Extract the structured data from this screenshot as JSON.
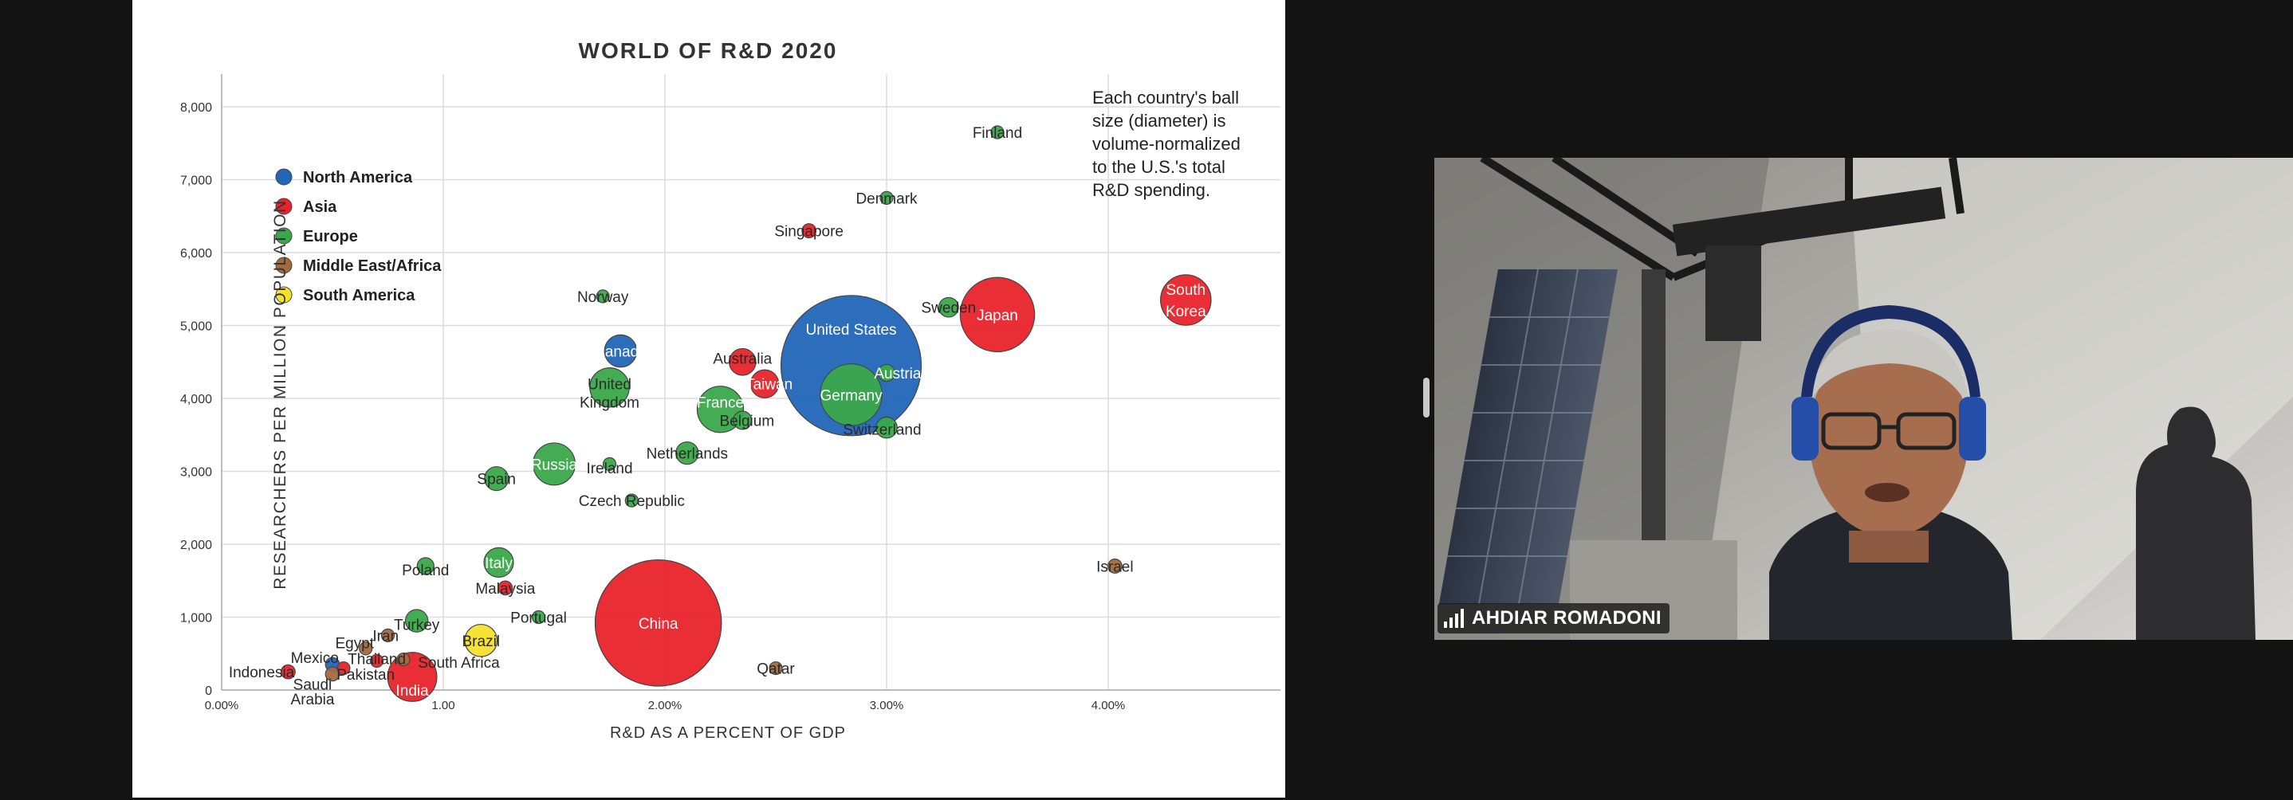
{
  "speaker_name": "AHDIAR ROMADONI",
  "chart_data": {
    "type": "scatter",
    "title": "WORLD OF R&D 2020",
    "xlabel": "R&D AS A PERCENT OF GDP",
    "ylabel": "RESEARCHERS PER MILLION POPULATION",
    "xlim": [
      0,
      4.8
    ],
    "ylim": [
      0,
      8400
    ],
    "x_ticks": [
      {
        "value": 0,
        "label": "0.00%"
      },
      {
        "value": 1,
        "label": "1.00"
      },
      {
        "value": 2,
        "label": "2.00%"
      },
      {
        "value": 3,
        "label": "3.00%"
      },
      {
        "value": 4,
        "label": "4.00%"
      }
    ],
    "y_ticks": [
      {
        "value": 0,
        "label": "0"
      },
      {
        "value": 1000,
        "label": "1,000"
      },
      {
        "value": 2000,
        "label": "2,000"
      },
      {
        "value": 3000,
        "label": "3,000"
      },
      {
        "value": 4000,
        "label": "4,000"
      },
      {
        "value": 5000,
        "label": "5,000"
      },
      {
        "value": 6000,
        "label": "6,000"
      },
      {
        "value": 7000,
        "label": "7,000"
      },
      {
        "value": 8000,
        "label": "8,000"
      }
    ],
    "grid": true,
    "legend_position": "top-left",
    "note_lines": [
      "Each country's ball",
      "size (diameter) is",
      "volume-normalized",
      "to the U.S.'s total",
      "R&D spending."
    ],
    "legend": [
      {
        "name": "North America",
        "color": "#2166b8"
      },
      {
        "name": "Asia",
        "color": "#e8232a"
      },
      {
        "name": "Europe",
        "color": "#3aa84a"
      },
      {
        "name": "Middle East/Africa",
        "color": "#a36a3e"
      },
      {
        "name": "South America",
        "color": "#f5e22b"
      }
    ],
    "points": [
      {
        "country": "United States",
        "region": "North America",
        "x": 2.84,
        "y": 4450,
        "size": 1.0
      },
      {
        "country": "China",
        "region": "Asia",
        "x": 1.97,
        "y": 920,
        "size": 0.9
      },
      {
        "country": "Japan",
        "region": "Asia",
        "x": 3.5,
        "y": 5150,
        "size": 0.53
      },
      {
        "country": "Germany",
        "region": "Europe",
        "x": 2.84,
        "y": 4050,
        "size": 0.44
      },
      {
        "country": "South Korea",
        "region": "Asia",
        "x": 4.35,
        "y": 5350,
        "size": 0.36
      },
      {
        "country": "India",
        "region": "Asia",
        "x": 0.86,
        "y": 180,
        "size": 0.35
      },
      {
        "country": "France",
        "region": "Europe",
        "x": 2.25,
        "y": 3850,
        "size": 0.33
      },
      {
        "country": "United Kingdom",
        "region": "Europe",
        "x": 1.75,
        "y": 4150,
        "size": 0.28
      },
      {
        "country": "Russia",
        "region": "Europe",
        "x": 1.5,
        "y": 3100,
        "size": 0.3
      },
      {
        "country": "Brazil",
        "region": "South America",
        "x": 1.17,
        "y": 680,
        "size": 0.23
      },
      {
        "country": "Canada",
        "region": "North America",
        "x": 1.8,
        "y": 4650,
        "size": 0.23
      },
      {
        "country": "Italy",
        "region": "Europe",
        "x": 1.25,
        "y": 1750,
        "size": 0.21
      },
      {
        "country": "Australia",
        "region": "Asia",
        "x": 2.35,
        "y": 4500,
        "size": 0.19
      },
      {
        "country": "Taiwan",
        "region": "Asia",
        "x": 2.45,
        "y": 4200,
        "size": 0.2
      },
      {
        "country": "Spain",
        "region": "Europe",
        "x": 1.24,
        "y": 2900,
        "size": 0.17
      },
      {
        "country": "Netherlands",
        "region": "Europe",
        "x": 2.1,
        "y": 3250,
        "size": 0.16
      },
      {
        "country": "Switzerland",
        "region": "Europe",
        "x": 3.0,
        "y": 3600,
        "size": 0.15
      },
      {
        "country": "Sweden",
        "region": "Europe",
        "x": 3.28,
        "y": 5250,
        "size": 0.14
      },
      {
        "country": "Belgium",
        "region": "Europe",
        "x": 2.35,
        "y": 3700,
        "size": 0.13
      },
      {
        "country": "Austria",
        "region": "Europe",
        "x": 3.0,
        "y": 4350,
        "size": 0.12
      },
      {
        "country": "Turkey",
        "region": "Europe",
        "x": 0.88,
        "y": 950,
        "size": 0.16
      },
      {
        "country": "Singapore",
        "region": "Asia",
        "x": 2.65,
        "y": 6300,
        "size": 0.1
      },
      {
        "country": "Denmark",
        "region": "Europe",
        "x": 3.0,
        "y": 6750,
        "size": 0.09
      },
      {
        "country": "Finland",
        "region": "Europe",
        "x": 3.5,
        "y": 7650,
        "size": 0.09
      },
      {
        "country": "Norway",
        "region": "Europe",
        "x": 1.72,
        "y": 5400,
        "size": 0.07
      },
      {
        "country": "Poland",
        "region": "Europe",
        "x": 0.92,
        "y": 1700,
        "size": 0.12
      },
      {
        "country": "Israel",
        "region": "Middle East/Africa",
        "x": 4.03,
        "y": 1700,
        "size": 0.1
      },
      {
        "country": "Malaysia",
        "region": "Asia",
        "x": 1.28,
        "y": 1400,
        "size": 0.1
      },
      {
        "country": "Ireland",
        "region": "Europe",
        "x": 1.75,
        "y": 3100,
        "size": 0.07
      },
      {
        "country": "Czech Republic",
        "region": "Europe",
        "x": 1.85,
        "y": 2600,
        "size": 0.08
      },
      {
        "country": "Portugal",
        "region": "Europe",
        "x": 1.43,
        "y": 1000,
        "size": 0.07
      },
      {
        "country": "Qatar",
        "region": "Middle East/Africa",
        "x": 2.5,
        "y": 300,
        "size": 0.09
      },
      {
        "country": "Mexico",
        "region": "North America",
        "x": 0.5,
        "y": 350,
        "size": 0.1
      },
      {
        "country": "Indonesia",
        "region": "Asia",
        "x": 0.3,
        "y": 250,
        "size": 0.1
      },
      {
        "country": "Saudi Arabia",
        "region": "Middle East/Africa",
        "x": 0.5,
        "y": 220,
        "size": 0.1
      },
      {
        "country": "Egypt",
        "region": "Middle East/Africa",
        "x": 0.65,
        "y": 570,
        "size": 0.09
      },
      {
        "country": "Iran",
        "region": "Middle East/Africa",
        "x": 0.75,
        "y": 750,
        "size": 0.09
      },
      {
        "country": "Thailand",
        "region": "Asia",
        "x": 0.7,
        "y": 400,
        "size": 0.08
      },
      {
        "country": "Pakistan",
        "region": "Asia",
        "x": 0.55,
        "y": 300,
        "size": 0.08
      },
      {
        "country": "South Africa",
        "region": "Middle East/Africa",
        "x": 0.82,
        "y": 420,
        "size": 0.09
      }
    ],
    "labels": [
      {
        "text": "United States",
        "x": 2.84,
        "y": 4950
      },
      {
        "text": "China",
        "x": 1.97,
        "y": 920
      },
      {
        "text": "Japan",
        "x": 3.5,
        "y": 5150
      },
      {
        "text": "Germany",
        "x": 2.84,
        "y": 4050
      },
      {
        "text": "South",
        "x": 4.35,
        "y": 5500
      },
      {
        "text": "Korea",
        "x": 4.35,
        "y": 5200
      },
      {
        "text": "India",
        "x": 0.86,
        "y": 0
      },
      {
        "text": "France",
        "x": 2.25,
        "y": 3950
      },
      {
        "text": "United",
        "x": 1.75,
        "y": 4200
      },
      {
        "text": "Kingdom",
        "x": 1.75,
        "y": 3950
      },
      {
        "text": "Russia",
        "x": 1.5,
        "y": 3100
      },
      {
        "text": "Brazil",
        "x": 1.17,
        "y": 680
      },
      {
        "text": "Canada",
        "x": 1.8,
        "y": 4650
      },
      {
        "text": "Italy",
        "x": 1.25,
        "y": 1750
      },
      {
        "text": "Australia",
        "x": 2.35,
        "y": 4550
      },
      {
        "text": "Taiwan",
        "x": 2.47,
        "y": 4200
      },
      {
        "text": "Spain",
        "x": 1.24,
        "y": 2900
      },
      {
        "text": "Netherlands",
        "x": 2.1,
        "y": 3250
      },
      {
        "text": "Switzerland",
        "x": 2.98,
        "y": 3580
      },
      {
        "text": "Sweden",
        "x": 3.28,
        "y": 5250
      },
      {
        "text": "Belgium",
        "x": 2.37,
        "y": 3700
      },
      {
        "text": "Austria",
        "x": 3.05,
        "y": 4350
      },
      {
        "text": "Turkey",
        "x": 0.88,
        "y": 900
      },
      {
        "text": "Singapore",
        "x": 2.65,
        "y": 6300
      },
      {
        "text": "Denmark",
        "x": 3.0,
        "y": 6750
      },
      {
        "text": "Finland",
        "x": 3.5,
        "y": 7650
      },
      {
        "text": "Norway",
        "x": 1.72,
        "y": 5400
      },
      {
        "text": "Poland",
        "x": 0.92,
        "y": 1650
      },
      {
        "text": "Israel",
        "x": 4.03,
        "y": 1700
      },
      {
        "text": "Malaysia",
        "x": 1.28,
        "y": 1400
      },
      {
        "text": "Ireland",
        "x": 1.75,
        "y": 3050
      },
      {
        "text": "Czech Republic",
        "x": 1.85,
        "y": 2600
      },
      {
        "text": "Portugal",
        "x": 1.43,
        "y": 1000
      },
      {
        "text": "Qatar",
        "x": 2.5,
        "y": 300
      },
      {
        "text": "Mexico",
        "x": 0.42,
        "y": 450
      },
      {
        "text": "Indonesia",
        "x": 0.18,
        "y": 250
      },
      {
        "text": "Saudi",
        "x": 0.41,
        "y": 80
      },
      {
        "text": "Arabia",
        "x": 0.41,
        "y": -120
      },
      {
        "text": "Egypt",
        "x": 0.6,
        "y": 650
      },
      {
        "text": "Iran",
        "x": 0.74,
        "y": 750
      },
      {
        "text": "Thailand",
        "x": 0.7,
        "y": 430
      },
      {
        "text": "Pakistan",
        "x": 0.65,
        "y": 220
      },
      {
        "text": "South Africa",
        "x": 1.07,
        "y": 380
      }
    ]
  }
}
